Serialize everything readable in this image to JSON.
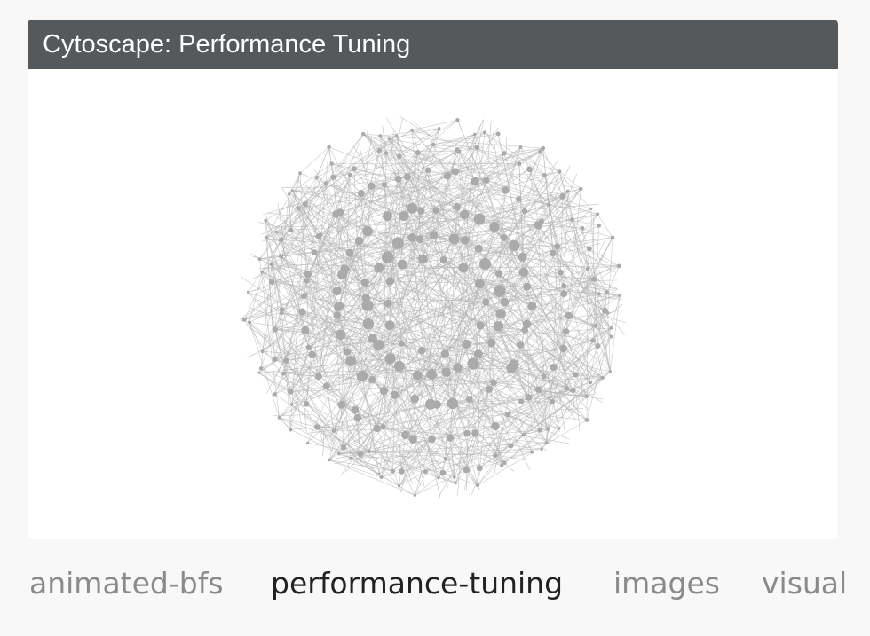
{
  "card": {
    "title": "Cytoscape: Performance Tuning",
    "header_color": "#56595b"
  },
  "graph": {
    "node_color": "#aaaaaa",
    "edge_color": "#b4b4b4",
    "icon": "network-graph"
  },
  "tabs": [
    {
      "label": "animated-bfs",
      "active": false
    },
    {
      "label": "performance-tuning",
      "active": true
    },
    {
      "label": "images",
      "active": false
    },
    {
      "label": "visual",
      "active": false
    }
  ]
}
